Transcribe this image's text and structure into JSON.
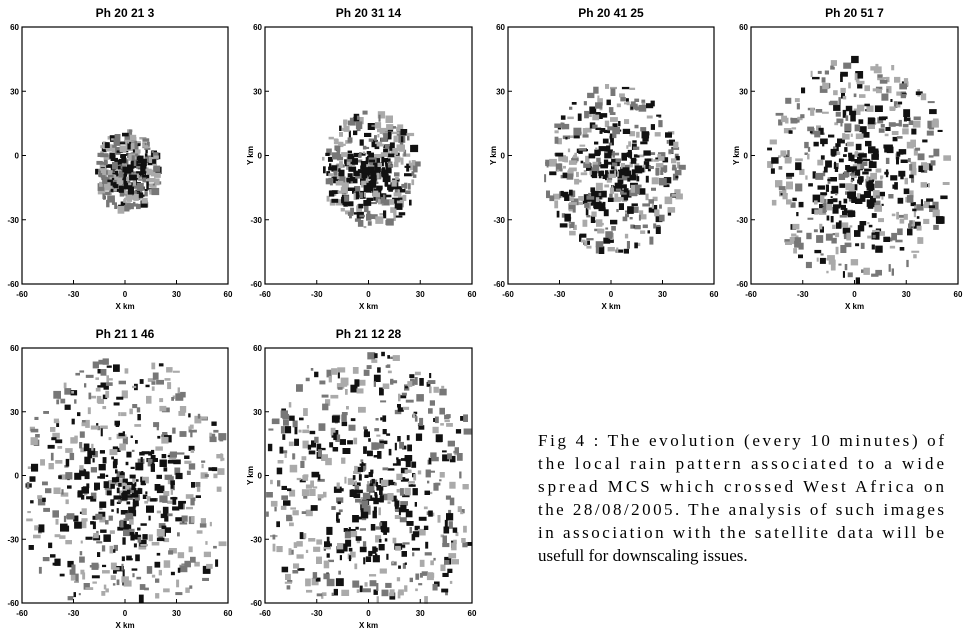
{
  "figure": {
    "panels": [
      {
        "title": "Ph   20  21  3",
        "xlabel": "X km",
        "xlim": [
          -60,
          60
        ],
        "ylim": [
          -60,
          60
        ],
        "xticks": [
          -60,
          -30,
          0,
          30,
          60
        ],
        "yticks": [
          -60,
          -30,
          0,
          30,
          60
        ]
      },
      {
        "title": "Ph   20  31  14",
        "xlabel": "X km",
        "ylabel": "Y km",
        "xlim": [
          -60,
          60
        ],
        "ylim": [
          -60,
          60
        ],
        "xticks": [
          -60,
          -30,
          0,
          30,
          60
        ],
        "yticks": [
          -60,
          -30,
          0,
          30,
          60
        ]
      },
      {
        "title": "Ph   20  41  25",
        "xlabel": "X km",
        "ylabel": "Y km",
        "xlim": [
          -60,
          60
        ],
        "ylim": [
          -60,
          60
        ],
        "xticks": [
          -60,
          -30,
          0,
          30,
          60
        ],
        "yticks": [
          -60,
          -30,
          0,
          30,
          60
        ]
      },
      {
        "title": "Ph   20  51  7",
        "xlabel": "X km",
        "ylabel": "Y km",
        "xlim": [
          -60,
          60
        ],
        "ylim": [
          -60,
          60
        ],
        "xticks": [
          -60,
          -30,
          0,
          30,
          60
        ],
        "yticks": [
          -60,
          -30,
          0,
          30,
          60
        ]
      },
      {
        "title": "Ph   21  1  46",
        "xlabel": "X km",
        "xlim": [
          -60,
          60
        ],
        "ylim": [
          -60,
          60
        ],
        "xticks": [
          -60,
          -30,
          0,
          30,
          60
        ],
        "yticks": [
          -60,
          -30,
          0,
          30,
          60
        ]
      },
      {
        "title": "Ph   21  12  28",
        "xlabel": "X km",
        "ylabel": "Y km",
        "xlim": [
          -60,
          60
        ],
        "ylim": [
          -60,
          60
        ],
        "xticks": [
          -60,
          -30,
          0,
          30,
          60
        ],
        "yticks": [
          -60,
          -30,
          0,
          30,
          60
        ]
      }
    ],
    "caption": [
      "Fig 4 : The evolution (every 10 minutes) of",
      "the local rain pattern associated to a wide",
      "spread MCS which crossed West Africa on",
      "the 28/08/2005. The analysis of such images",
      "in association with the satellite data will be",
      "usefull for downscaling issues."
    ]
  }
}
